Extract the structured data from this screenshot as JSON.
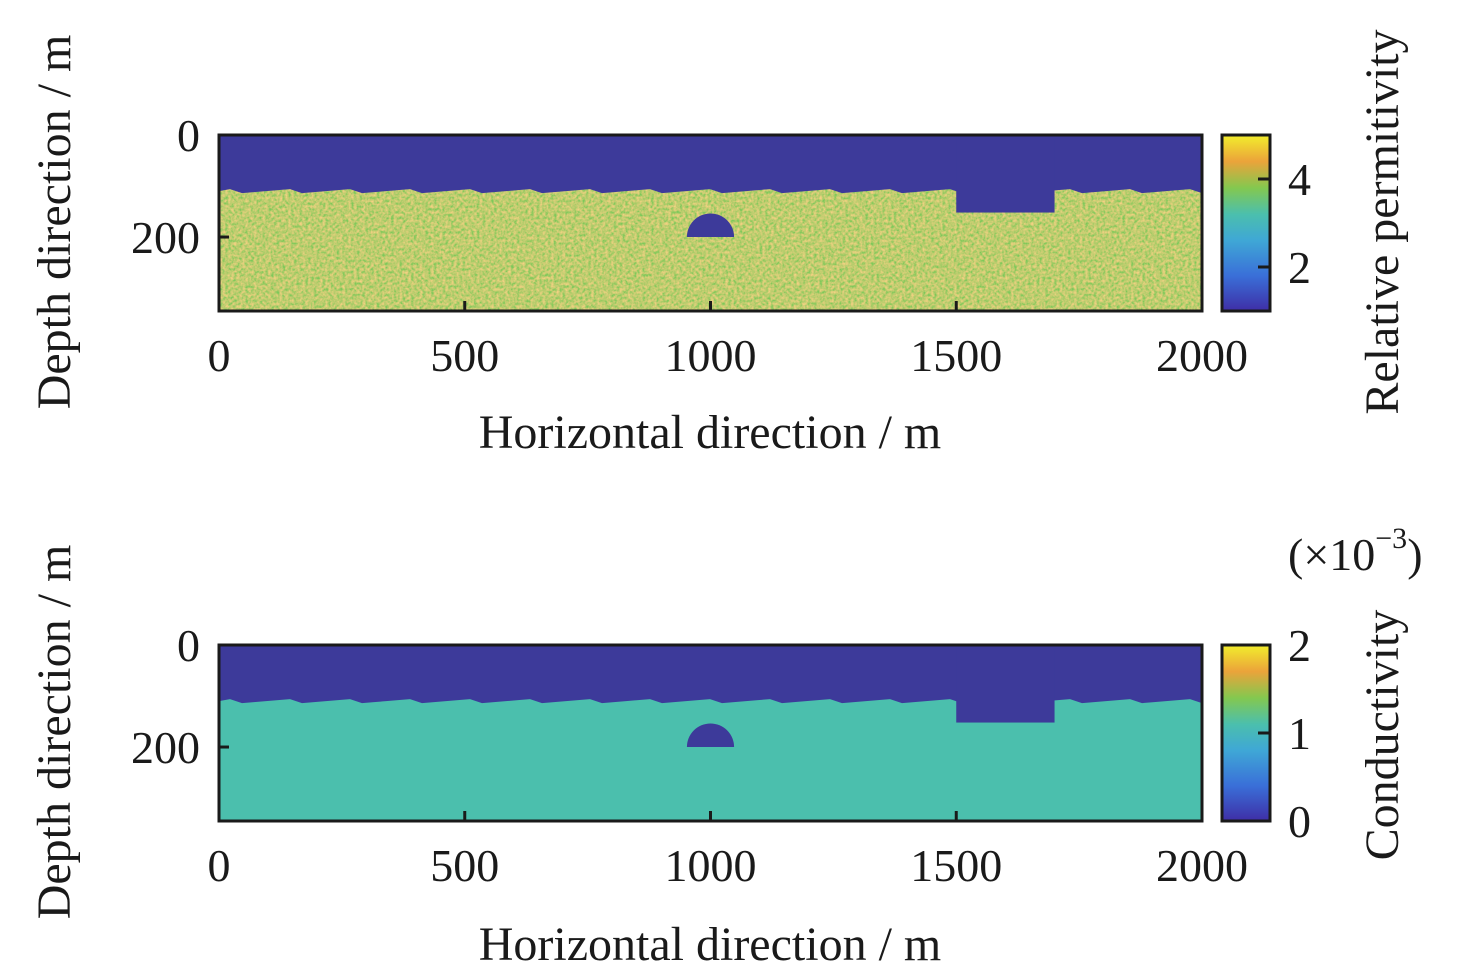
{
  "chart_data": [
    {
      "type": "heatmap",
      "title": "",
      "xlabel": "Horizontal direction / m",
      "ylabel": "Depth direction / m",
      "xlim": [
        0,
        2000
      ],
      "ylim": [
        0,
        345
      ],
      "xticks": [
        "0",
        "500",
        "1000",
        "1500",
        "2000"
      ],
      "xtick_values": [
        0,
        500,
        1000,
        1500,
        2000
      ],
      "yticks": [
        "0",
        "200"
      ],
      "ytick_values": [
        0,
        200
      ],
      "colorbar": {
        "label": "Relative permitivity",
        "range": [
          1,
          5
        ],
        "ticks": [
          "2",
          "4"
        ],
        "tick_values": [
          2,
          4
        ],
        "multiplier": ""
      },
      "model": {
        "air_layer_value": 1,
        "air_layer_depth": 110,
        "ground_value": "random 3.5-4.8",
        "ground_randomized": true,
        "trench": {
          "x": [
            1500,
            1700
          ],
          "depth": 152,
          "value": 1
        },
        "cavity": {
          "center_x": 1000,
          "center_depth": 200,
          "radius": 48,
          "shape": "upper half-disk",
          "value": 1
        }
      },
      "colors": {
        "air": "#3d3a9a",
        "ground_a": "#e9a43a",
        "ground_b": "#7cc95a"
      }
    },
    {
      "type": "heatmap",
      "title": "",
      "xlabel": "Horizontal direction / m",
      "ylabel": "Depth direction / m",
      "xlim": [
        0,
        2000
      ],
      "ylim": [
        0,
        345
      ],
      "xticks": [
        "0",
        "500",
        "1000",
        "1500",
        "2000"
      ],
      "xtick_values": [
        0,
        500,
        1000,
        1500,
        2000
      ],
      "yticks": [
        "0",
        "200"
      ],
      "ytick_values": [
        0,
        200
      ],
      "colorbar": {
        "label": "Conductivity",
        "range": [
          0,
          2
        ],
        "ticks": [
          "0",
          "1",
          "2"
        ],
        "tick_values": [
          0,
          1,
          2
        ],
        "multiplier": "(×10",
        "multiplier_exp": "−3",
        "multiplier_close": ")"
      },
      "model": {
        "air_layer_value": 0,
        "air_layer_depth": 110,
        "ground_value": 1,
        "ground_randomized": false,
        "trench": {
          "x": [
            1500,
            1700
          ],
          "depth": 152,
          "value": 0
        },
        "cavity": {
          "center_x": 1000,
          "center_depth": 200,
          "radius": 48,
          "shape": "upper half-disk",
          "value": 0
        }
      },
      "colors": {
        "air": "#3d3a9a",
        "ground": "#4bbfad"
      }
    }
  ]
}
